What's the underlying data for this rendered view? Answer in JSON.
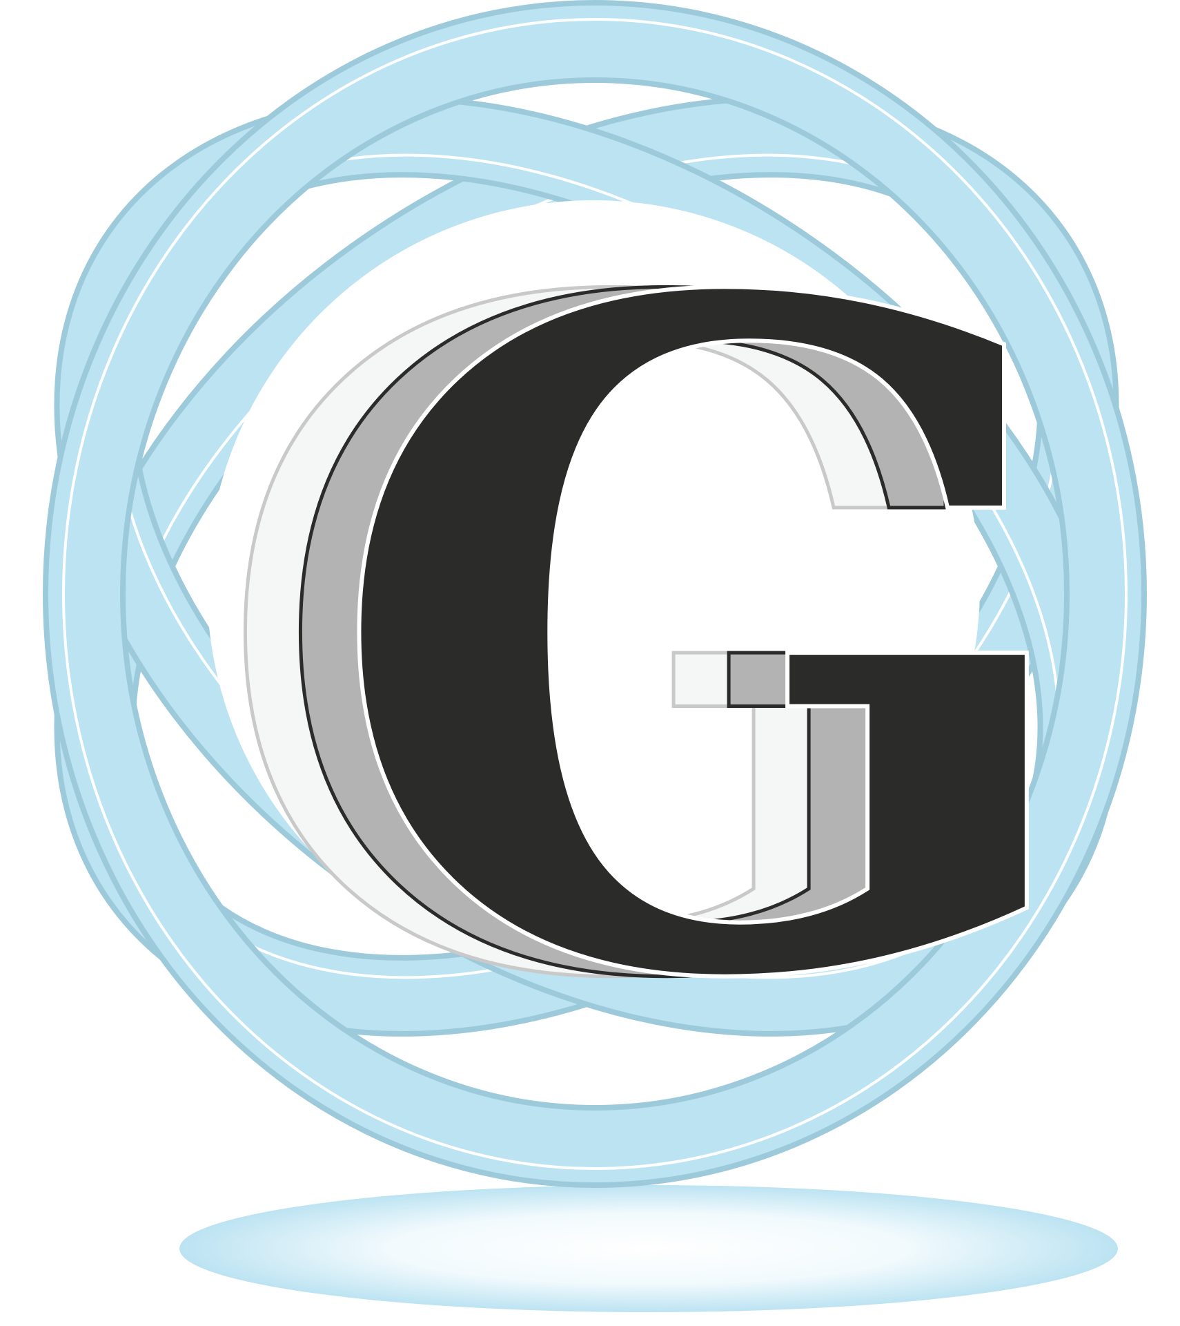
{
  "logo": {
    "lettermark": "G",
    "colors": {
      "background": "#ffffff",
      "ring_fill": "#bce3f2",
      "ring_edge": "#9dcadb",
      "ring_highlight": "#ffffff",
      "letter_front": "#2b2b2a",
      "letter_middle": "#b3b3b3",
      "letter_back": "#f5f7f6",
      "letter_back_outline": "#c9c9c9",
      "shadow": "#bce3f2"
    }
  }
}
